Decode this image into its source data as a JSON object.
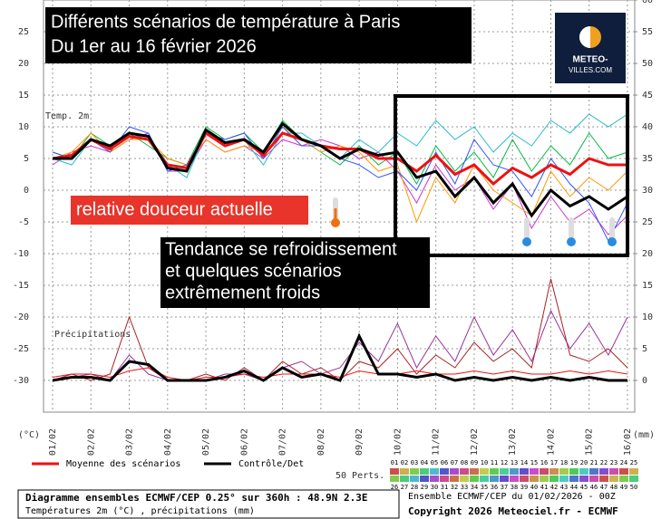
{
  "chart_data": {
    "type": "line",
    "title": "Différents scénarios de température à Paris",
    "subtitle": "Du 1er au 16 février 2026",
    "logo": [
      "METEO-",
      "VILLES.COM"
    ],
    "panel_labels": [
      "Temp. 2m",
      "Précipitations"
    ],
    "annotations": [
      "relative douceur actuelle",
      "Tendance se refroidissement",
      "et quelques scénarios",
      "extrêmement froids"
    ],
    "y_label": "(°C)",
    "y2_label": "(mm)",
    "categories": [
      "01/02",
      null,
      "02/02",
      null,
      "03/02",
      null,
      "04/02",
      null,
      "05/02",
      null,
      "06/02",
      null,
      "07/02",
      null,
      "08/02",
      null,
      "09/02",
      null,
      "10/02",
      null,
      "11/02",
      null,
      "12/02",
      null,
      "13/02",
      null,
      "14/02",
      null,
      "15/02",
      null,
      "16/02"
    ],
    "ylim": [
      -35,
      30
    ],
    "yticks": [
      -30,
      -25,
      -20,
      -15,
      -10,
      -5,
      0,
      5,
      10,
      15,
      20,
      25
    ],
    "y2lim": [
      -5,
      60
    ],
    "y2ticks": [
      0,
      5,
      10,
      15,
      20,
      25,
      30,
      35,
      40,
      45,
      50,
      55,
      60
    ],
    "grid": true,
    "series": [
      {
        "color": "#00bb44",
        "values": [
          6,
          5,
          9,
          7,
          9,
          7,
          5,
          4,
          10,
          8,
          9,
          6,
          11,
          8,
          6,
          4,
          7,
          4,
          6,
          1,
          7,
          3,
          6,
          2,
          8,
          3,
          7,
          4,
          9,
          5,
          6
        ]
      },
      {
        "color": "#cc33cc",
        "values": [
          4,
          6,
          7,
          6,
          8,
          9,
          3,
          3,
          8,
          6,
          7,
          5,
          8,
          7,
          8,
          7,
          5,
          6,
          3,
          -2,
          4,
          0,
          2,
          -3,
          1,
          -6,
          -1,
          -5,
          -3,
          -7,
          -4
        ]
      },
      {
        "color": "#22bbcc",
        "values": [
          5,
          4,
          8,
          7,
          9,
          8,
          4,
          2,
          9,
          7,
          8,
          4,
          9,
          9,
          7,
          5,
          8,
          6,
          9,
          7,
          11,
          8,
          10,
          6,
          9,
          7,
          11,
          9,
          12,
          10,
          12
        ]
      },
      {
        "color": "#ff9900",
        "values": [
          5,
          6,
          9,
          6,
          8,
          8,
          5,
          4,
          8,
          6,
          7,
          6,
          10,
          8,
          6,
          7,
          6,
          3,
          4,
          -5,
          2,
          -2,
          4,
          0,
          -2,
          -4,
          3,
          -1,
          2,
          0,
          3
        ]
      },
      {
        "color": "#3355ff",
        "values": [
          6,
          5,
          8,
          6,
          10,
          9,
          3,
          4,
          9,
          8,
          9,
          5,
          10,
          7,
          7,
          5,
          4,
          2,
          3,
          0,
          6,
          1,
          8,
          4,
          3,
          -1,
          5,
          1,
          -2,
          -8,
          -2
        ]
      },
      {
        "name": "Moyenne des scénarios",
        "color": "#ee1111",
        "values": [
          5,
          5.5,
          8,
          6.5,
          8.5,
          8,
          4,
          3.5,
          9,
          7,
          8,
          5.5,
          9,
          8,
          7,
          6.5,
          6.5,
          5,
          5,
          3,
          5.5,
          2.5,
          4,
          1,
          3.5,
          2,
          4,
          2.5,
          5,
          4,
          4
        ]
      },
      {
        "name": "Contrôle/Det",
        "color": "#000000",
        "values": [
          5,
          5,
          8,
          7,
          9,
          8.5,
          3.5,
          3,
          9.5,
          7.5,
          8,
          6,
          10.5,
          8,
          7,
          5,
          6.5,
          5.5,
          6,
          2,
          3,
          -1,
          2,
          -2,
          1,
          -4,
          0,
          -2.5,
          -1,
          -3,
          -1
        ]
      },
      {
        "axis": "y2",
        "color": "#993399",
        "values": [
          0,
          0.5,
          1,
          0,
          4,
          1,
          0,
          0,
          0,
          1,
          1,
          0,
          2,
          3,
          1,
          2,
          6,
          3,
          9,
          2,
          7,
          3,
          10,
          4,
          8,
          3,
          11,
          5,
          9,
          4,
          10
        ]
      },
      {
        "axis": "y2",
        "color": "#aa2222",
        "values": [
          0,
          1,
          0,
          1,
          10,
          2,
          0,
          0,
          1,
          0,
          2,
          0,
          3,
          1,
          2,
          0,
          3,
          2,
          5,
          1,
          4,
          2,
          6,
          3,
          5,
          2,
          16,
          4,
          3,
          5,
          2
        ]
      },
      {
        "axis": "y2",
        "color": "#ee1111",
        "values": [
          0.5,
          1,
          1,
          0.5,
          1.5,
          2,
          0.5,
          0,
          0.5,
          0.5,
          1,
          0.5,
          1,
          1,
          1,
          0.5,
          1.5,
          1,
          1,
          1.5,
          1,
          1,
          1.5,
          1,
          1.5,
          1,
          1,
          1.5,
          1,
          1.5,
          1
        ]
      },
      {
        "axis": "y2",
        "color": "#000000",
        "values": [
          0,
          0.5,
          0.5,
          0,
          3,
          2.5,
          0,
          0,
          0,
          0.5,
          1.5,
          0,
          2,
          0.5,
          1,
          0,
          7,
          1,
          1,
          0.5,
          1,
          0,
          0.5,
          0,
          0.5,
          0,
          0.5,
          0,
          0.5,
          0,
          0
        ]
      }
    ],
    "legend_note": "50 Perts.",
    "member_ids": [
      "01",
      "02",
      "03",
      "04",
      "05",
      "06",
      "07",
      "08",
      "09",
      "10",
      "11",
      "12",
      "13",
      "14",
      "15",
      "16",
      "17",
      "18",
      "19",
      "20",
      "21",
      "22",
      "23",
      "24",
      "25",
      "26",
      "27",
      "28",
      "29",
      "30",
      "31",
      "32",
      "33",
      "34",
      "35",
      "36",
      "37",
      "38",
      "39",
      "40",
      "41",
      "42",
      "43",
      "44",
      "45",
      "46",
      "47",
      "48",
      "49",
      "50"
    ],
    "footer": {
      "box": [
        "Diagramme ensembles ECMWF/CEP 0.25° sur 360h : 48.9N 2.3E",
        "Températures 2m (°C) , précipitations (mm)"
      ],
      "run": "Ensemble ECMWF/CEP du 01/02/2026 - 00Z",
      "copyright": "Copyright 2026 Meteociel.fr - ECMWF"
    }
  }
}
